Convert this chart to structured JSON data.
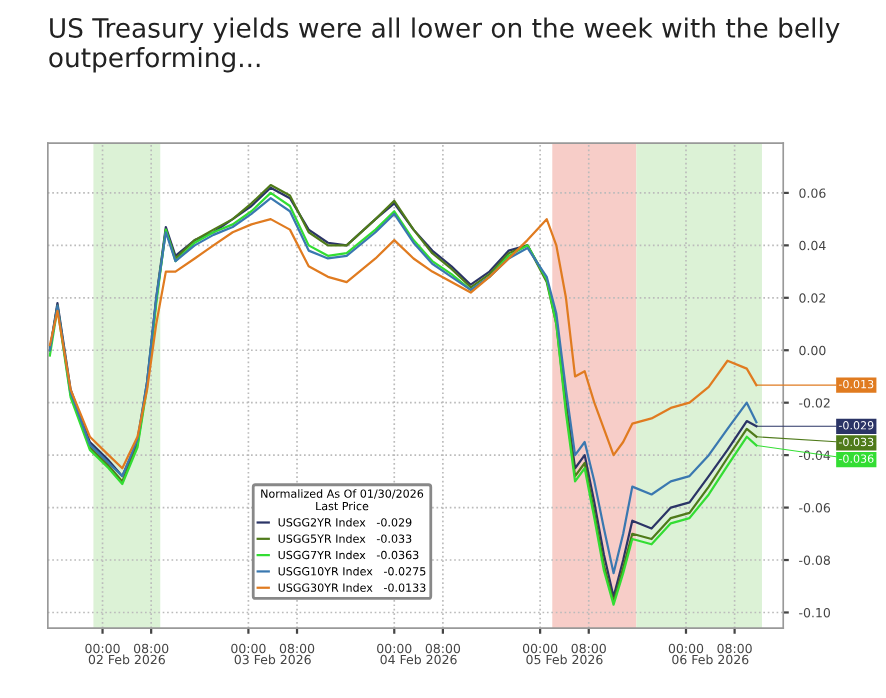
{
  "chart_data": {
    "type": "line",
    "title": "US Treasury yields were all lower on the week with the belly outperforming...",
    "legend_title": "Normalized As Of 01/30/2026\nLast Price",
    "x": [
      "2026-02-01T15:20",
      "2026-02-01T16:35",
      "2026-02-01T18:45",
      "2026-02-01T21:55",
      "2026-02-02T01:00",
      "2026-02-02T03:15",
      "2026-02-02T05:45",
      "2026-02-02T07:20",
      "2026-02-02T08:50",
      "2026-02-02T10:25",
      "2026-02-02T12:00",
      "2026-02-02T15:10",
      "2026-02-02T18:15",
      "2026-02-02T21:25",
      "2026-02-03T00:30",
      "2026-02-03T03:40",
      "2026-02-03T06:50",
      "2026-02-03T09:55",
      "2026-02-03T13:05",
      "2026-02-03T16:10",
      "2026-02-03T20:55",
      "2026-02-04T00:00",
      "2026-02-04T03:10",
      "2026-02-04T06:15",
      "2026-02-04T09:25",
      "2026-02-04T12:35",
      "2026-02-04T15:40",
      "2026-02-04T18:50",
      "2026-02-04T21:55",
      "2026-02-05T01:05",
      "2026-02-05T02:40",
      "2026-02-05T04:15",
      "2026-02-05T05:45",
      "2026-02-05T07:20",
      "2026-02-05T08:55",
      "2026-02-05T10:30",
      "2026-02-05T12:05",
      "2026-02-05T13:40",
      "2026-02-05T15:10",
      "2026-02-05T18:20",
      "2026-02-05T21:30",
      "2026-02-06T00:35",
      "2026-02-06T03:45",
      "2026-02-06T06:50",
      "2026-02-06T10:00",
      "2026-02-06T11:35"
    ],
    "series": [
      {
        "name": "USGG2YR Index   -0.029",
        "color": "#2b3466",
        "values": [
          0.0,
          0.018,
          -0.015,
          -0.035,
          -0.042,
          -0.048,
          -0.035,
          -0.012,
          0.02,
          0.047,
          0.036,
          0.042,
          0.045,
          0.05,
          0.055,
          0.062,
          0.058,
          0.046,
          0.041,
          0.04,
          0.05,
          0.056,
          0.046,
          0.038,
          0.032,
          0.025,
          0.03,
          0.038,
          0.04,
          0.027,
          0.012,
          -0.02,
          -0.045,
          -0.04,
          -0.058,
          -0.078,
          -0.094,
          -0.08,
          -0.065,
          -0.068,
          -0.06,
          -0.058,
          -0.048,
          -0.038,
          -0.027,
          -0.029
        ]
      },
      {
        "name": "USGG5YR Index   -0.033",
        "color": "#4f7a1a",
        "values": [
          0.0,
          0.017,
          -0.017,
          -0.037,
          -0.044,
          -0.05,
          -0.036,
          -0.013,
          0.019,
          0.046,
          0.035,
          0.042,
          0.046,
          0.05,
          0.056,
          0.063,
          0.059,
          0.045,
          0.04,
          0.04,
          0.05,
          0.057,
          0.046,
          0.037,
          0.031,
          0.024,
          0.029,
          0.037,
          0.04,
          0.026,
          0.01,
          -0.022,
          -0.048,
          -0.043,
          -0.062,
          -0.082,
          -0.096,
          -0.083,
          -0.07,
          -0.072,
          -0.064,
          -0.062,
          -0.052,
          -0.041,
          -0.03,
          -0.033
        ]
      },
      {
        "name": "USGG7YR Index   -0.0363",
        "color": "#33dd33",
        "values": [
          -0.002,
          0.016,
          -0.018,
          -0.038,
          -0.045,
          -0.051,
          -0.037,
          -0.014,
          0.018,
          0.046,
          0.034,
          0.041,
          0.045,
          0.048,
          0.053,
          0.06,
          0.055,
          0.04,
          0.036,
          0.037,
          0.046,
          0.053,
          0.042,
          0.034,
          0.029,
          0.023,
          0.028,
          0.036,
          0.04,
          0.027,
          0.01,
          -0.024,
          -0.05,
          -0.045,
          -0.064,
          -0.084,
          -0.097,
          -0.085,
          -0.072,
          -0.074,
          -0.066,
          -0.064,
          -0.055,
          -0.044,
          -0.033,
          -0.0363
        ]
      },
      {
        "name": "USGG10YR Index   -0.0275",
        "color": "#3a78b0",
        "values": [
          0.0,
          0.017,
          -0.016,
          -0.036,
          -0.043,
          -0.048,
          -0.034,
          -0.012,
          0.02,
          0.045,
          0.034,
          0.04,
          0.044,
          0.047,
          0.052,
          0.058,
          0.053,
          0.038,
          0.035,
          0.036,
          0.045,
          0.052,
          0.041,
          0.033,
          0.028,
          0.023,
          0.028,
          0.035,
          0.039,
          0.028,
          0.014,
          -0.015,
          -0.04,
          -0.035,
          -0.05,
          -0.068,
          -0.085,
          -0.07,
          -0.052,
          -0.055,
          -0.05,
          -0.048,
          -0.04,
          -0.03,
          -0.02,
          -0.0275
        ]
      },
      {
        "name": "USGG30YR Index   -0.0133",
        "color": "#e07b20",
        "values": [
          0.002,
          0.015,
          -0.015,
          -0.033,
          -0.04,
          -0.045,
          -0.033,
          -0.015,
          0.01,
          0.03,
          0.03,
          0.035,
          0.04,
          0.045,
          0.048,
          0.05,
          0.046,
          0.032,
          0.028,
          0.026,
          0.035,
          0.042,
          0.035,
          0.03,
          0.026,
          0.022,
          0.028,
          0.035,
          0.042,
          0.05,
          0.04,
          0.02,
          -0.01,
          -0.008,
          -0.02,
          -0.03,
          -0.04,
          -0.035,
          -0.028,
          -0.026,
          -0.022,
          -0.02,
          -0.014,
          -0.004,
          -0.007,
          -0.0133
        ]
      }
    ],
    "xlim": [
      "2026-02-01T15:00",
      "2026-02-06T16:00"
    ],
    "xticks": [
      {
        "value": "2026-02-02T00:00",
        "label": "00:00"
      },
      {
        "value": "2026-02-02T08:00",
        "label": "08:00"
      },
      {
        "value": "2026-02-03T00:00",
        "label": "00:00"
      },
      {
        "value": "2026-02-03T08:00",
        "label": "08:00"
      },
      {
        "value": "2026-02-04T00:00",
        "label": "00:00"
      },
      {
        "value": "2026-02-04T08:00",
        "label": "08:00"
      },
      {
        "value": "2026-02-05T00:00",
        "label": "00:00"
      },
      {
        "value": "2026-02-05T08:00",
        "label": "08:00"
      },
      {
        "value": "2026-02-06T00:00",
        "label": "00:00"
      },
      {
        "value": "2026-02-06T08:00",
        "label": "08:00"
      }
    ],
    "x2lim": [
      "2026-02-01T15:00",
      "2026-02-06T16:00"
    ],
    "x2ticks": [
      {
        "value": "2026-02-02T04:00",
        "label": "02 Feb 2026"
      },
      {
        "value": "2026-02-03T04:00",
        "label": "03 Feb 2026"
      },
      {
        "value": "2026-02-04T04:00",
        "label": "04 Feb 2026"
      },
      {
        "value": "2026-02-05T04:00",
        "label": "05 Feb 2026"
      },
      {
        "value": "2026-02-06T04:00",
        "label": "06 Feb 2026"
      }
    ],
    "ylim": [
      -0.106,
      0.079
    ],
    "yticks": [
      {
        "value": -0.1,
        "label": "-0.10"
      },
      {
        "value": -0.08,
        "label": "-0.08"
      },
      {
        "value": -0.06,
        "label": "-0.06"
      },
      {
        "value": -0.04,
        "label": "-0.04"
      },
      {
        "value": -0.02,
        "label": "-0.02"
      },
      {
        "value": 0.0,
        "label": "0.00"
      },
      {
        "value": 0.02,
        "label": "0.02"
      },
      {
        "value": 0.04,
        "label": "0.04"
      },
      {
        "value": 0.06,
        "label": "0.06"
      }
    ],
    "bands": [
      {
        "axis": "x",
        "from": "2026-02-01T22:30",
        "to": "2026-02-02T09:30",
        "color": "#dcf2d6"
      },
      {
        "axis": "x",
        "from": "2026-02-05T02:00",
        "to": "2026-02-05T15:50",
        "color": "#f7cdc8"
      },
      {
        "axis": "x",
        "from": "2026-02-05T15:50",
        "to": "2026-02-06T12:30",
        "color": "#dcf2d6"
      }
    ],
    "annotations": [
      {
        "text": "-0.013",
        "x": "2026-02-06T11:35",
        "y": -0.0133
      },
      {
        "text": "-0.029",
        "x": "2026-02-06T11:35",
        "y": -0.029
      },
      {
        "text": "-0.033",
        "x": "2026-02-06T11:35",
        "y": -0.033
      },
      {
        "text": "-0.036",
        "x": "2026-02-06T11:35",
        "y": -0.0363
      }
    ],
    "grid": true,
    "legend": "bottom",
    "marker": "none",
    "line_style": "solid"
  }
}
